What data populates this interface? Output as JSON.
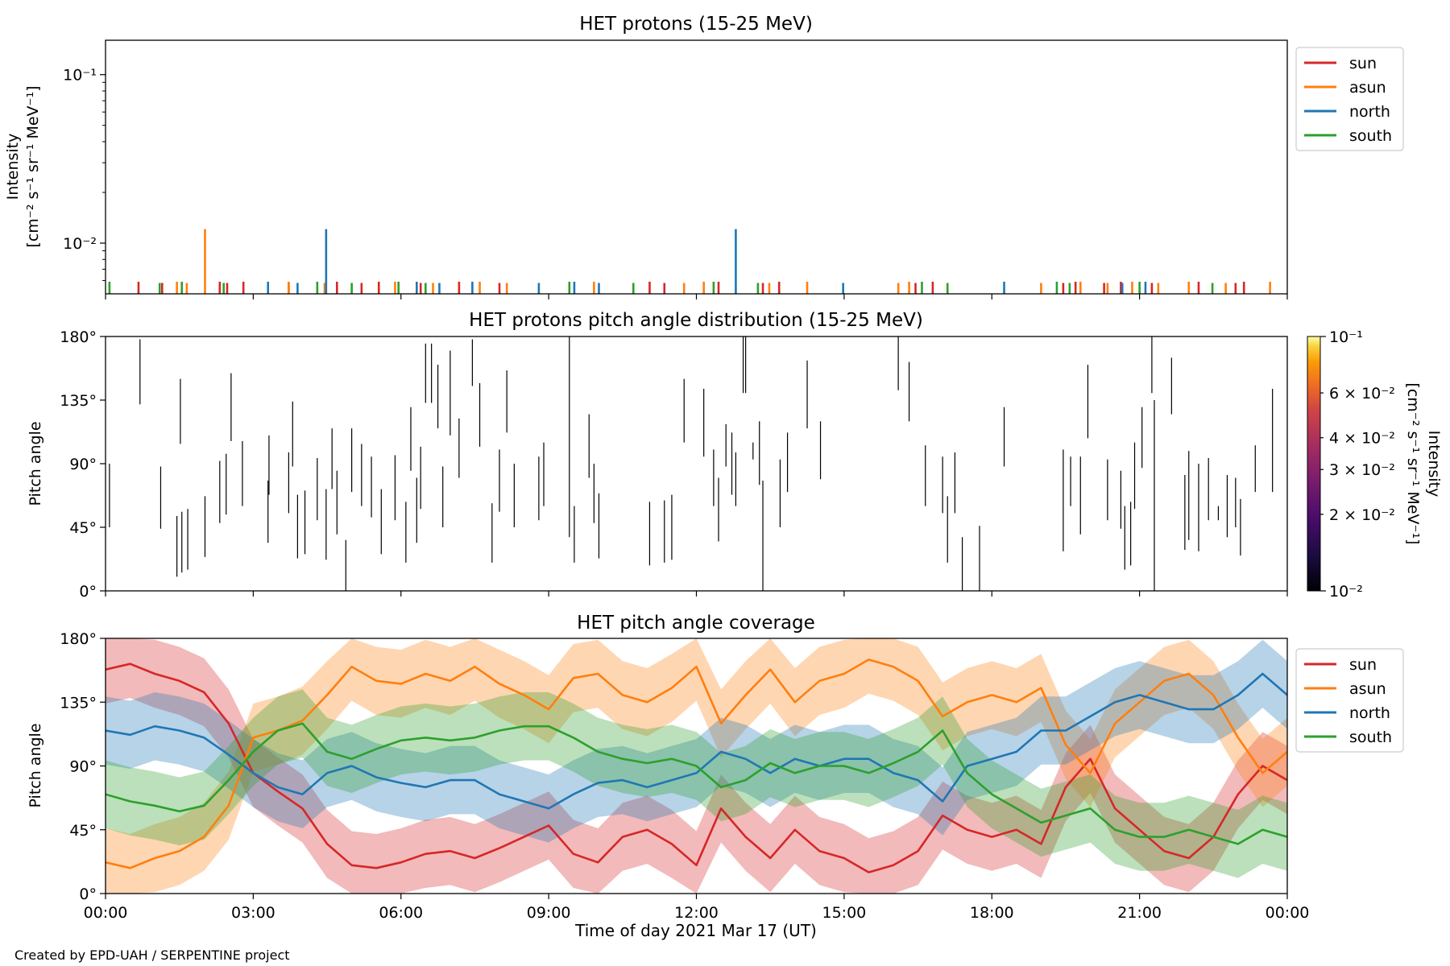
{
  "colors": {
    "sun": "#d62728",
    "asun": "#ff7f0e",
    "north": "#1f77b4",
    "south": "#2ca02c"
  },
  "credit": "Created by EPD-UAH / SERPENTINE project",
  "chart_data": [
    {
      "type": "bar",
      "title": "HET protons (15-25 MeV)",
      "ylabel_line1": "Intensity",
      "ylabel_line2": "[cm⁻² s⁻¹ sr⁻¹ MeV⁻¹]",
      "yscale": "log",
      "ylim": [
        0.005,
        0.16
      ],
      "xlim_hours": [
        0,
        24
      ],
      "yticks": [
        {
          "value": 0.01,
          "label": "10⁻²"
        },
        {
          "value": 0.1,
          "label": "10⁻¹"
        }
      ],
      "legend": {
        "placement": "outside-top-right",
        "entries": [
          "sun",
          "asun",
          "north",
          "south"
        ]
      },
      "series": [
        {
          "name": "sun",
          "color_key": "sun",
          "x": [
            0.67,
            1.15,
            2.32,
            2.47,
            2.8,
            3.72,
            4.7,
            5.2,
            5.55,
            6.4,
            7.18,
            8.0,
            11.05,
            11.35,
            12.45,
            13.35,
            13.68,
            16.45,
            16.8,
            19.45,
            19.7,
            20.28,
            20.62,
            21.25,
            22.2,
            22.95,
            23.12
          ],
          "values": [
            0.0059,
            0.0058,
            0.0059,
            0.0058,
            0.0059,
            0.0058,
            0.0059,
            0.0058,
            0.0059,
            0.0058,
            0.0059,
            0.0058,
            0.0059,
            0.0058,
            0.0059,
            0.0058,
            0.0059,
            0.0058,
            0.0059,
            0.0058,
            0.0059,
            0.0058,
            0.0059,
            0.0058,
            0.0059,
            0.0058,
            0.0059
          ]
        },
        {
          "name": "asun",
          "color_key": "asun",
          "x": [
            1.45,
            1.65,
            2.02,
            3.72,
            4.45,
            5.88,
            6.65,
            7.6,
            8.15,
            9.92,
            11.75,
            12.15,
            13.48,
            14.25,
            16.1,
            16.32,
            19.0,
            19.8,
            20.35,
            20.85,
            21.38,
            22.0,
            22.75,
            23.65
          ],
          "values": [
            0.0059,
            0.0058,
            0.0121,
            0.0059,
            0.0058,
            0.0059,
            0.0058,
            0.0059,
            0.0058,
            0.0059,
            0.0058,
            0.0059,
            0.0058,
            0.0059,
            0.0058,
            0.0059,
            0.0058,
            0.0059,
            0.0058,
            0.0059,
            0.0058,
            0.0059,
            0.0058,
            0.0059
          ]
        },
        {
          "name": "north",
          "color_key": "north",
          "x": [
            3.3,
            3.9,
            4.48,
            6.32,
            6.78,
            7.45,
            8.8,
            9.52,
            10.02,
            12.8,
            14.98,
            18.25,
            20.65,
            21.12
          ],
          "values": [
            0.0059,
            0.0058,
            0.0121,
            0.0059,
            0.0058,
            0.0059,
            0.0058,
            0.0059,
            0.0058,
            0.0121,
            0.0058,
            0.0059,
            0.0058,
            0.0059
          ]
        },
        {
          "name": "south",
          "color_key": "south",
          "x": [
            0.08,
            1.1,
            1.55,
            2.4,
            4.3,
            5.0,
            5.95,
            6.5,
            9.42,
            10.72,
            12.35,
            13.25,
            16.58,
            17.1,
            19.32,
            19.58,
            21.0,
            22.48
          ],
          "values": [
            0.0059,
            0.0058,
            0.0059,
            0.0058,
            0.0059,
            0.0058,
            0.0059,
            0.0058,
            0.0059,
            0.0058,
            0.0059,
            0.0058,
            0.0059,
            0.0058,
            0.0059,
            0.0058,
            0.0059,
            0.0058
          ]
        }
      ]
    },
    {
      "type": "heatmap",
      "title": "HET protons pitch angle distribution (15-25 MeV)",
      "ylabel": "Pitch angle",
      "ylim": [
        0,
        180
      ],
      "xlim_hours": [
        0,
        24
      ],
      "yticks": [
        {
          "value": 0,
          "label": "0°"
        },
        {
          "value": 45,
          "label": "45°"
        },
        {
          "value": 90,
          "label": "90°"
        },
        {
          "value": 135,
          "label": "135°"
        },
        {
          "value": 180,
          "label": "180°"
        }
      ],
      "colorbar": {
        "label_line1": "Intensity",
        "label_line2": "[cm⁻² s⁻¹ sr⁻¹ MeV⁻¹]",
        "scale": "log",
        "range": [
          0.01,
          0.1
        ],
        "ticks": [
          {
            "value": 0.01,
            "label": "10⁻²"
          },
          {
            "value": 0.02,
            "label": "2 × 10⁻²"
          },
          {
            "value": 0.03,
            "label": "3 × 10⁻²"
          },
          {
            "value": 0.04,
            "label": "4 × 10⁻²"
          },
          {
            "value": 0.06,
            "label": "6 × 10⁻²"
          },
          {
            "value": 0.1,
            "label": "10⁻¹"
          }
        ]
      },
      "segments": [
        [
          0.08,
          45,
          90
        ],
        [
          0.7,
          132,
          178
        ],
        [
          1.12,
          44,
          88
        ],
        [
          1.45,
          10,
          53
        ],
        [
          1.55,
          13,
          56
        ],
        [
          1.67,
          15,
          58
        ],
        [
          1.52,
          104,
          150
        ],
        [
          2.02,
          24,
          67
        ],
        [
          2.32,
          48,
          92
        ],
        [
          2.45,
          54,
          97
        ],
        [
          2.55,
          106,
          154
        ],
        [
          2.78,
          60,
          106
        ],
        [
          3.3,
          34,
          78
        ],
        [
          3.32,
          68,
          110
        ],
        [
          3.72,
          55,
          98
        ],
        [
          3.8,
          88,
          134
        ],
        [
          3.9,
          23,
          68
        ],
        [
          4.05,
          26,
          71
        ],
        [
          4.3,
          50,
          94
        ],
        [
          4.48,
          22,
          72
        ],
        [
          4.6,
          72,
          115
        ],
        [
          4.7,
          40,
          85
        ],
        [
          4.88,
          0,
          36
        ],
        [
          5.0,
          70,
          115
        ],
        [
          5.2,
          60,
          104
        ],
        [
          5.4,
          52,
          95
        ],
        [
          5.6,
          26,
          72
        ],
        [
          5.88,
          50,
          96
        ],
        [
          6.1,
          20,
          63
        ],
        [
          6.2,
          85,
          130
        ],
        [
          6.32,
          34,
          80
        ],
        [
          6.4,
          58,
          102
        ],
        [
          6.5,
          133,
          175
        ],
        [
          6.62,
          133,
          175
        ],
        [
          6.75,
          115,
          160
        ],
        [
          6.85,
          45,
          88
        ],
        [
          7.0,
          110,
          170
        ],
        [
          7.18,
          80,
          122
        ],
        [
          7.45,
          145,
          178
        ],
        [
          7.6,
          102,
          147
        ],
        [
          7.85,
          20,
          62
        ],
        [
          8.0,
          56,
          100
        ],
        [
          8.15,
          112,
          156
        ],
        [
          8.3,
          45,
          90
        ],
        [
          8.8,
          50,
          95
        ],
        [
          8.9,
          60,
          105
        ],
        [
          9.42,
          38,
          180
        ],
        [
          9.52,
          20,
          60
        ],
        [
          9.82,
          80,
          125
        ],
        [
          9.92,
          48,
          90
        ],
        [
          10.02,
          23,
          69
        ],
        [
          11.05,
          18,
          63
        ],
        [
          11.35,
          20,
          64
        ],
        [
          11.5,
          22,
          68
        ],
        [
          11.75,
          105,
          150
        ],
        [
          12.15,
          95,
          143
        ],
        [
          12.35,
          60,
          100
        ],
        [
          12.45,
          35,
          80
        ],
        [
          12.6,
          88,
          118
        ],
        [
          12.72,
          68,
          112
        ],
        [
          12.8,
          60,
          98
        ],
        [
          12.95,
          140,
          180
        ],
        [
          13.0,
          140,
          180
        ],
        [
          13.15,
          93,
          105
        ],
        [
          13.28,
          75,
          120
        ],
        [
          13.35,
          0,
          78
        ],
        [
          13.7,
          45,
          93
        ],
        [
          13.85,
          70,
          112
        ],
        [
          14.25,
          115,
          163
        ],
        [
          14.52,
          79,
          120
        ],
        [
          16.1,
          142,
          180
        ],
        [
          16.32,
          120,
          162
        ],
        [
          16.65,
          60,
          103
        ],
        [
          17.0,
          55,
          95
        ],
        [
          17.1,
          20,
          67
        ],
        [
          17.25,
          55,
          98
        ],
        [
          17.4,
          0,
          38
        ],
        [
          17.75,
          0,
          46
        ],
        [
          18.25,
          88,
          130
        ],
        [
          19.45,
          28,
          100
        ],
        [
          19.6,
          60,
          95
        ],
        [
          19.8,
          40,
          95
        ],
        [
          19.95,
          108,
          160
        ],
        [
          20.35,
          50,
          93
        ],
        [
          20.62,
          44,
          85
        ],
        [
          20.7,
          15,
          60
        ],
        [
          20.82,
          18,
          63
        ],
        [
          20.9,
          58,
          105
        ],
        [
          21.05,
          87,
          130
        ],
        [
          21.25,
          140,
          180
        ],
        [
          21.3,
          0,
          135
        ],
        [
          21.65,
          125,
          165
        ],
        [
          21.92,
          29,
          82
        ],
        [
          22.0,
          36,
          99
        ],
        [
          22.2,
          28,
          90
        ],
        [
          22.4,
          50,
          94
        ],
        [
          22.6,
          50,
          60
        ],
        [
          22.78,
          38,
          82
        ],
        [
          22.95,
          45,
          80
        ],
        [
          23.05,
          25,
          65
        ],
        [
          23.35,
          70,
          103
        ],
        [
          23.7,
          70,
          143
        ]
      ]
    },
    {
      "type": "line",
      "title": "HET pitch angle coverage",
      "ylabel": "Pitch angle",
      "xlabel": "Time of day 2021 Mar 17 (UT)",
      "ylim": [
        0,
        180
      ],
      "xlim_hours": [
        0,
        24
      ],
      "xticks": [
        {
          "value": 0,
          "label": "00:00"
        },
        {
          "value": 3,
          "label": "03:00"
        },
        {
          "value": 6,
          "label": "06:00"
        },
        {
          "value": 9,
          "label": "09:00"
        },
        {
          "value": 12,
          "label": "12:00"
        },
        {
          "value": 15,
          "label": "15:00"
        },
        {
          "value": 18,
          "label": "18:00"
        },
        {
          "value": 21,
          "label": "21:00"
        },
        {
          "value": 24,
          "label": "00:00"
        }
      ],
      "yticks": [
        {
          "value": 0,
          "label": "0°"
        },
        {
          "value": 45,
          "label": "45°"
        },
        {
          "value": 90,
          "label": "90°"
        },
        {
          "value": 135,
          "label": "135°"
        },
        {
          "value": 180,
          "label": "180°"
        }
      ],
      "band_halfwidth_deg": 24,
      "legend": {
        "placement": "outside-top-right",
        "entries": [
          "sun",
          "asun",
          "north",
          "south"
        ]
      },
      "x": [
        0,
        0.5,
        1,
        1.5,
        2,
        2.5,
        3,
        3.5,
        4,
        4.5,
        5,
        5.5,
        6,
        6.5,
        7,
        7.5,
        8,
        8.5,
        9,
        9.5,
        10,
        10.5,
        11,
        11.5,
        12,
        12.5,
        13,
        13.5,
        14,
        14.5,
        15,
        15.5,
        16,
        16.5,
        17,
        17.5,
        18,
        18.5,
        19,
        19.5,
        20,
        20.5,
        21,
        21.5,
        22,
        22.5,
        23,
        23.5,
        24
      ],
      "series": [
        {
          "name": "sun",
          "color_key": "sun",
          "values": [
            158,
            162,
            155,
            150,
            142,
            120,
            85,
            72,
            60,
            35,
            20,
            18,
            22,
            28,
            30,
            25,
            32,
            40,
            48,
            28,
            22,
            40,
            45,
            35,
            20,
            60,
            40,
            25,
            45,
            30,
            25,
            15,
            20,
            30,
            55,
            45,
            40,
            45,
            35,
            75,
            95,
            60,
            45,
            30,
            25,
            40,
            70,
            90,
            80
          ]
        },
        {
          "name": "asun",
          "color_key": "asun",
          "values": [
            22,
            18,
            25,
            30,
            40,
            62,
            110,
            115,
            122,
            140,
            160,
            150,
            148,
            155,
            150,
            160,
            148,
            140,
            130,
            152,
            155,
            140,
            135,
            145,
            160,
            120,
            140,
            158,
            135,
            150,
            155,
            165,
            160,
            150,
            125,
            135,
            140,
            135,
            145,
            105,
            85,
            120,
            135,
            150,
            155,
            140,
            110,
            85,
            100
          ]
        },
        {
          "name": "north",
          "color_key": "north",
          "values": [
            115,
            112,
            118,
            115,
            110,
            98,
            85,
            75,
            70,
            85,
            90,
            82,
            78,
            75,
            80,
            80,
            70,
            65,
            60,
            70,
            78,
            80,
            75,
            80,
            85,
            100,
            95,
            85,
            95,
            90,
            95,
            95,
            85,
            80,
            65,
            90,
            95,
            100,
            115,
            115,
            125,
            135,
            140,
            135,
            130,
            130,
            140,
            155,
            140
          ]
        },
        {
          "name": "south",
          "color_key": "south",
          "values": [
            70,
            65,
            62,
            58,
            62,
            80,
            100,
            115,
            120,
            100,
            95,
            102,
            108,
            110,
            108,
            110,
            115,
            118,
            118,
            110,
            100,
            95,
            92,
            95,
            90,
            75,
            80,
            92,
            85,
            90,
            90,
            85,
            92,
            100,
            115,
            85,
            70,
            60,
            50,
            55,
            60,
            45,
            40,
            40,
            45,
            40,
            35,
            45,
            40
          ]
        }
      ]
    }
  ]
}
